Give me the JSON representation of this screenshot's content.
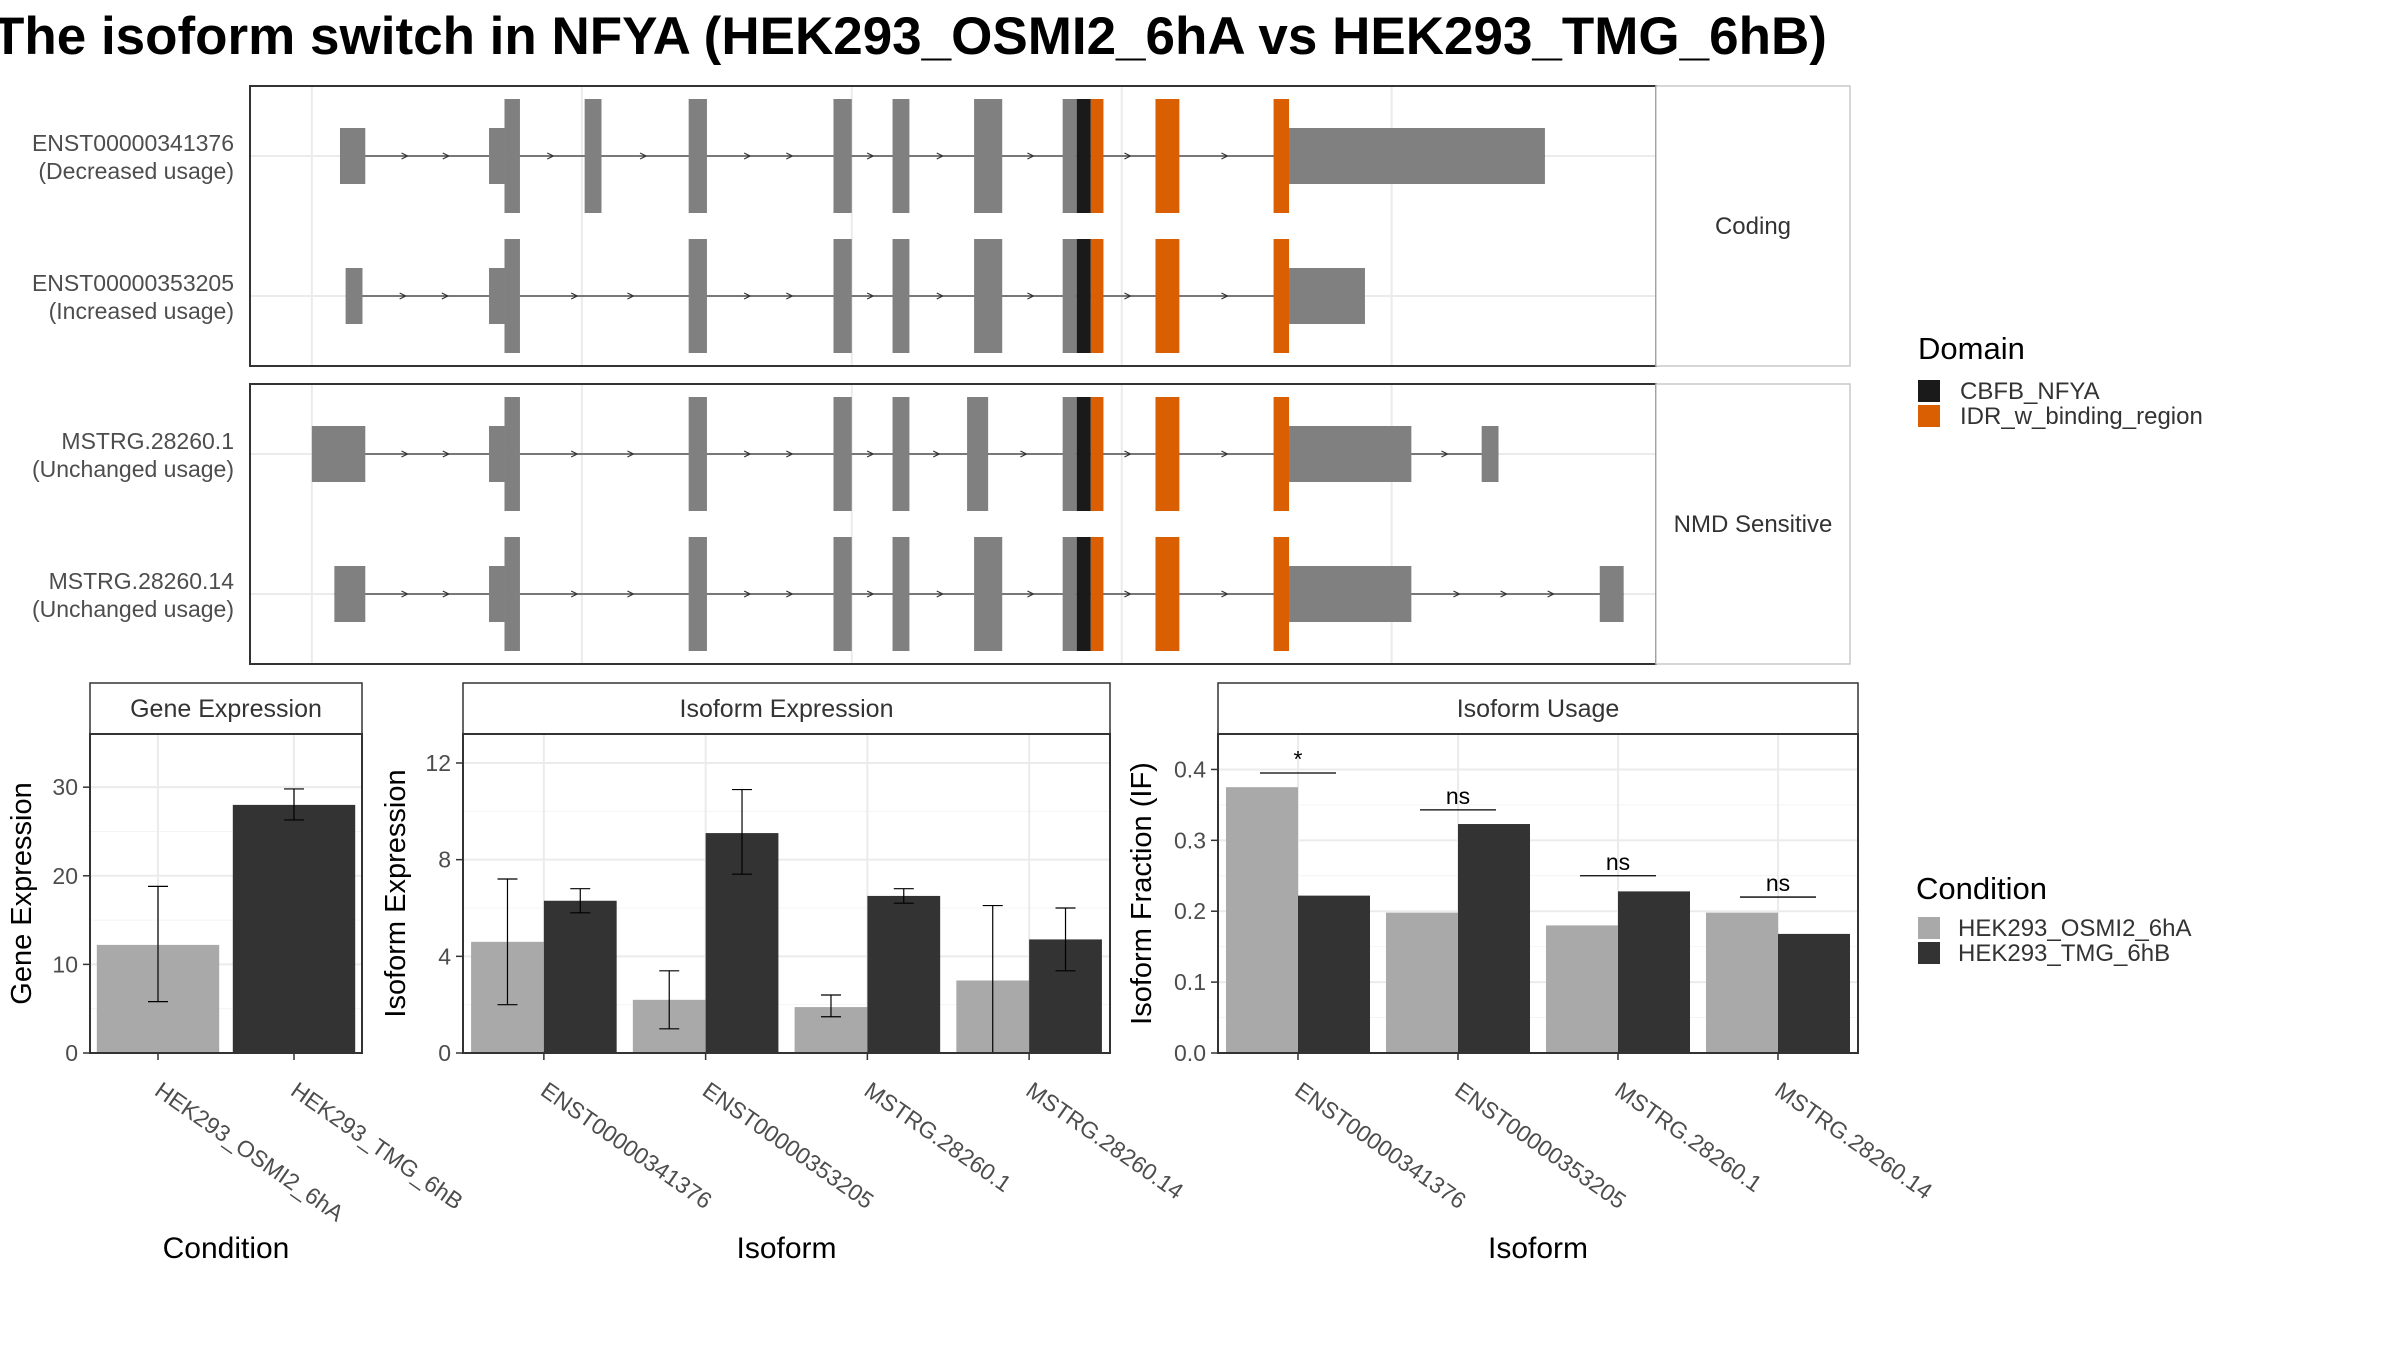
{
  "title": "The isoform switch in NFYA (HEK293_OSMI2_6hA vs HEK293_TMG_6hB)",
  "colors": {
    "exon": "#808080",
    "cbfb": "#1a1a1a",
    "idr": "#d95f02",
    "cond1": "#a9a9a9",
    "cond2": "#333333",
    "grid": "#ebebeb",
    "intron": "#333333"
  },
  "domain_legend": {
    "title": "Domain",
    "items": [
      {
        "label": "CBFB_NFYA",
        "color": "#1a1a1a"
      },
      {
        "label": "IDR_w_binding_region",
        "color": "#d95f02"
      }
    ]
  },
  "condition_legend": {
    "title": "Condition",
    "items": [
      {
        "label": "HEK293_OSMI2_6hA",
        "color": "#a9a9a9"
      },
      {
        "label": "HEK293_TMG_6hB",
        "color": "#333333"
      }
    ]
  },
  "chart_data": [
    {
      "type": "transcript-structure",
      "facets": [
        {
          "label": "Coding",
          "transcripts": [
            {
              "id": "ENST00000341376",
              "usage": "(Decreased usage)",
              "blocks": [
                {
                  "s": 0.064,
                  "e": 0.082,
                  "k": "utr"
                },
                {
                  "s": 0.17,
                  "e": 0.181,
                  "k": "utr"
                },
                {
                  "s": 0.181,
                  "e": 0.192,
                  "k": "cds"
                },
                {
                  "s": 0.238,
                  "e": 0.25,
                  "k": "cds"
                },
                {
                  "s": 0.312,
                  "e": 0.325,
                  "k": "cds"
                },
                {
                  "s": 0.415,
                  "e": 0.428,
                  "k": "cds"
                },
                {
                  "s": 0.457,
                  "e": 0.469,
                  "k": "cds"
                },
                {
                  "s": 0.515,
                  "e": 0.535,
                  "k": "cds"
                },
                {
                  "s": 0.578,
                  "e": 0.588,
                  "k": "cds"
                },
                {
                  "s": 0.588,
                  "e": 0.598,
                  "k": "cbfb"
                },
                {
                  "s": 0.598,
                  "e": 0.607,
                  "k": "idr"
                },
                {
                  "s": 0.644,
                  "e": 0.661,
                  "k": "idr"
                },
                {
                  "s": 0.728,
                  "e": 0.739,
                  "k": "idr"
                },
                {
                  "s": 0.739,
                  "e": 0.921,
                  "k": "utr"
                }
              ]
            },
            {
              "id": "ENST00000353205",
              "usage": "(Increased usage)",
              "blocks": [
                {
                  "s": 0.068,
                  "e": 0.08,
                  "k": "utr"
                },
                {
                  "s": 0.17,
                  "e": 0.181,
                  "k": "utr"
                },
                {
                  "s": 0.181,
                  "e": 0.192,
                  "k": "cds"
                },
                {
                  "s": 0.312,
                  "e": 0.325,
                  "k": "cds"
                },
                {
                  "s": 0.415,
                  "e": 0.428,
                  "k": "cds"
                },
                {
                  "s": 0.457,
                  "e": 0.469,
                  "k": "cds"
                },
                {
                  "s": 0.515,
                  "e": 0.535,
                  "k": "cds"
                },
                {
                  "s": 0.578,
                  "e": 0.588,
                  "k": "cds"
                },
                {
                  "s": 0.588,
                  "e": 0.598,
                  "k": "cbfb"
                },
                {
                  "s": 0.598,
                  "e": 0.607,
                  "k": "idr"
                },
                {
                  "s": 0.644,
                  "e": 0.661,
                  "k": "idr"
                },
                {
                  "s": 0.728,
                  "e": 0.739,
                  "k": "idr"
                },
                {
                  "s": 0.739,
                  "e": 0.793,
                  "k": "utr"
                }
              ]
            }
          ]
        },
        {
          "label": "NMD Sensitive",
          "transcripts": [
            {
              "id": "MSTRG.28260.1",
              "usage": "(Unchanged usage)",
              "blocks": [
                {
                  "s": 0.044,
                  "e": 0.082,
                  "k": "utr"
                },
                {
                  "s": 0.17,
                  "e": 0.181,
                  "k": "utr"
                },
                {
                  "s": 0.181,
                  "e": 0.192,
                  "k": "cds"
                },
                {
                  "s": 0.312,
                  "e": 0.325,
                  "k": "cds"
                },
                {
                  "s": 0.415,
                  "e": 0.428,
                  "k": "cds"
                },
                {
                  "s": 0.457,
                  "e": 0.469,
                  "k": "cds"
                },
                {
                  "s": 0.51,
                  "e": 0.525,
                  "k": "cds"
                },
                {
                  "s": 0.578,
                  "e": 0.588,
                  "k": "cds"
                },
                {
                  "s": 0.588,
                  "e": 0.598,
                  "k": "cbfb"
                },
                {
                  "s": 0.598,
                  "e": 0.607,
                  "k": "idr"
                },
                {
                  "s": 0.644,
                  "e": 0.661,
                  "k": "idr"
                },
                {
                  "s": 0.728,
                  "e": 0.739,
                  "k": "idr"
                },
                {
                  "s": 0.739,
                  "e": 0.826,
                  "k": "utr"
                },
                {
                  "s": 0.876,
                  "e": 0.888,
                  "k": "utr"
                }
              ]
            },
            {
              "id": "MSTRG.28260.14",
              "usage": "(Unchanged usage)",
              "blocks": [
                {
                  "s": 0.06,
                  "e": 0.082,
                  "k": "utr"
                },
                {
                  "s": 0.17,
                  "e": 0.181,
                  "k": "utr"
                },
                {
                  "s": 0.181,
                  "e": 0.192,
                  "k": "cds"
                },
                {
                  "s": 0.312,
                  "e": 0.325,
                  "k": "cds"
                },
                {
                  "s": 0.415,
                  "e": 0.428,
                  "k": "cds"
                },
                {
                  "s": 0.457,
                  "e": 0.469,
                  "k": "cds"
                },
                {
                  "s": 0.515,
                  "e": 0.535,
                  "k": "cds"
                },
                {
                  "s": 0.578,
                  "e": 0.588,
                  "k": "cds"
                },
                {
                  "s": 0.588,
                  "e": 0.598,
                  "k": "cbfb"
                },
                {
                  "s": 0.598,
                  "e": 0.607,
                  "k": "idr"
                },
                {
                  "s": 0.644,
                  "e": 0.661,
                  "k": "idr"
                },
                {
                  "s": 0.728,
                  "e": 0.739,
                  "k": "idr"
                },
                {
                  "s": 0.739,
                  "e": 0.826,
                  "k": "utr"
                },
                {
                  "s": 0.96,
                  "e": 0.977,
                  "k": "utr"
                }
              ]
            }
          ]
        }
      ]
    },
    {
      "type": "bar",
      "title": "Gene Expression",
      "xlabel": "Condition",
      "ylabel": "Gene Expression",
      "ylim": [
        0,
        36
      ],
      "yticks": [
        0,
        10,
        20,
        30
      ],
      "categories": [
        "HEK293_OSMI2_6hA",
        "HEK293_TMG_6hB"
      ],
      "values": [
        12.2,
        28.0
      ],
      "err_low": [
        5.8,
        26.3
      ],
      "err_high": [
        18.8,
        29.8
      ]
    },
    {
      "type": "bar",
      "title": "Isoform Expression",
      "xlabel": "Isoform",
      "ylabel": "Isoform Expression",
      "ylim": [
        0,
        13.2
      ],
      "yticks": [
        0,
        4,
        8,
        12
      ],
      "categories": [
        "ENST00000341376",
        "ENST00000353205",
        "MSTRG.28260.1",
        "MSTRG.28260.14"
      ],
      "series": [
        {
          "name": "HEK293_OSMI2_6hA",
          "values": [
            4.6,
            2.2,
            1.9,
            3.0
          ],
          "err_low": [
            2.0,
            1.0,
            1.5,
            0.0
          ],
          "err_high": [
            7.2,
            3.4,
            2.4,
            6.1
          ]
        },
        {
          "name": "HEK293_TMG_6hB",
          "values": [
            6.3,
            9.1,
            6.5,
            4.7
          ],
          "err_low": [
            5.8,
            7.4,
            6.2,
            3.4
          ],
          "err_high": [
            6.8,
            10.9,
            6.8,
            6.0
          ]
        }
      ]
    },
    {
      "type": "bar",
      "title": "Isoform Usage",
      "xlabel": "Isoform",
      "ylabel": "Isoform Fraction (IF)",
      "ylim": [
        0,
        0.45
      ],
      "yticks": [
        "0.0",
        "0.1",
        "0.2",
        "0.3",
        "0.4"
      ],
      "categories": [
        "ENST00000341376",
        "ENST00000353205",
        "MSTRG.28260.1",
        "MSTRG.28260.14"
      ],
      "series": [
        {
          "name": "HEK293_OSMI2_6hA",
          "values": [
            0.375,
            0.198,
            0.18,
            0.198
          ]
        },
        {
          "name": "HEK293_TMG_6hB",
          "values": [
            0.222,
            0.323,
            0.228,
            0.168
          ]
        }
      ],
      "significance": [
        {
          "label": "*",
          "y": 0.395
        },
        {
          "label": "ns",
          "y": 0.343
        },
        {
          "label": "ns",
          "y": 0.25
        },
        {
          "label": "ns",
          "y": 0.22
        }
      ]
    }
  ]
}
